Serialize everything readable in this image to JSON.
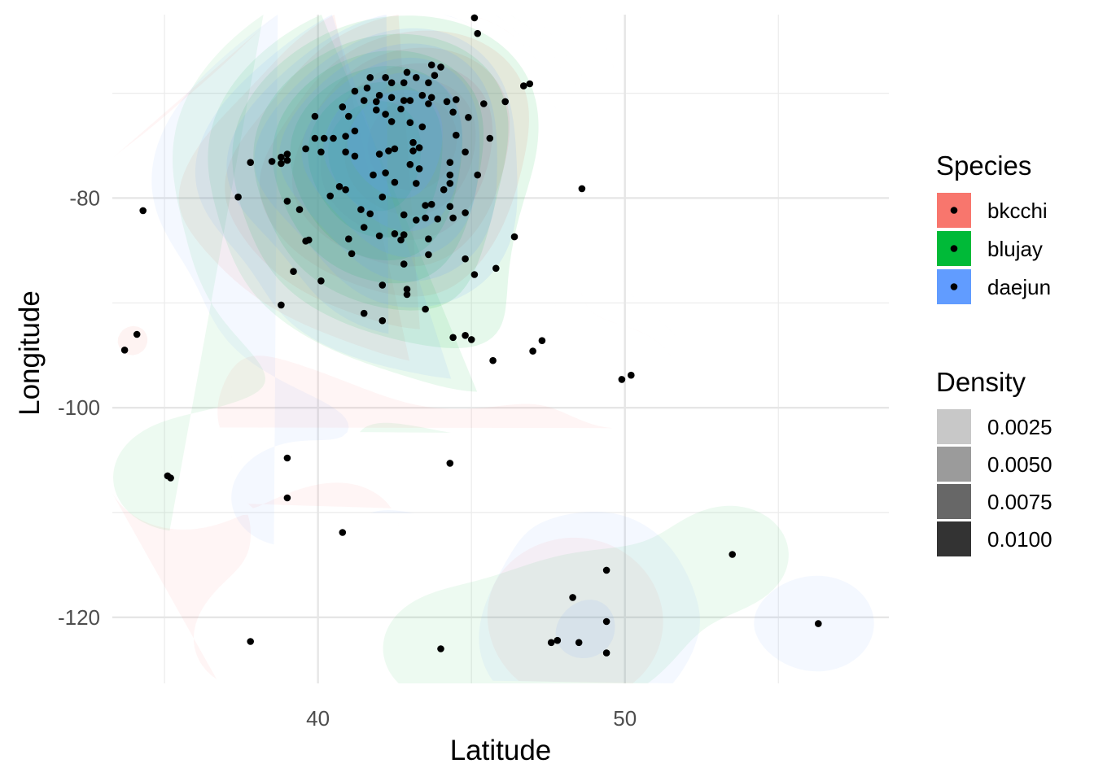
{
  "chart_data": {
    "type": "scatter",
    "xlabel": "Latitude",
    "ylabel": "Longitude",
    "xlim": [
      33.3,
      58.6
    ],
    "ylim": [
      -126.3,
      -62.5
    ],
    "x_ticks": [
      40,
      50
    ],
    "x_tick_labels": [
      "40",
      "50"
    ],
    "y_ticks": [
      -120,
      -100,
      -80
    ],
    "y_tick_labels": [
      "-120",
      "-100",
      "-80"
    ],
    "grid": true,
    "legend_position": "right",
    "legends": {
      "species": {
        "title": "Species",
        "entries": [
          {
            "label": "bkcchi",
            "color": "#F8766D"
          },
          {
            "label": "blujay",
            "color": "#00BA38"
          },
          {
            "label": "daejun",
            "color": "#619CFF"
          }
        ]
      },
      "density": {
        "title": "Density",
        "entries": [
          {
            "label": "0.0025",
            "alpha": 0.25
          },
          {
            "label": "0.0050",
            "alpha": 0.5
          },
          {
            "label": "0.0075",
            "alpha": 0.75
          },
          {
            "label": "0.0100",
            "alpha": 1.0
          }
        ]
      }
    },
    "points": [
      [
        45.1,
        -62.8
      ],
      [
        45.2,
        -64.3
      ],
      [
        43.7,
        -67.3
      ],
      [
        44.0,
        -67.5
      ],
      [
        42.9,
        -68.0
      ],
      [
        43.2,
        -68.5
      ],
      [
        41.7,
        -68.5
      ],
      [
        42.8,
        -69.0
      ],
      [
        43.8,
        -68.3
      ],
      [
        42.2,
        -68.5
      ],
      [
        42.4,
        -69.0
      ],
      [
        43.6,
        -69.0
      ],
      [
        46.7,
        -69.3
      ],
      [
        46.9,
        -69.1
      ],
      [
        41.6,
        -69.5
      ],
      [
        41.2,
        -69.8
      ],
      [
        42.0,
        -70.2
      ],
      [
        43.4,
        -70.2
      ],
      [
        43.7,
        -70.4
      ],
      [
        42.4,
        -70.4
      ],
      [
        42.8,
        -70.7
      ],
      [
        41.9,
        -70.8
      ],
      [
        41.5,
        -70.7
      ],
      [
        43.0,
        -70.7
      ],
      [
        44.5,
        -70.6
      ],
      [
        44.2,
        -70.8
      ],
      [
        45.4,
        -71.0
      ],
      [
        46.1,
        -70.8
      ],
      [
        40.8,
        -71.3
      ],
      [
        42.7,
        -71.5
      ],
      [
        43.6,
        -71.0
      ],
      [
        41.9,
        -71.6
      ],
      [
        42.2,
        -72.0
      ],
      [
        44.4,
        -71.8
      ],
      [
        44.9,
        -72.3
      ],
      [
        42.4,
        -72.7
      ],
      [
        43.0,
        -72.8
      ],
      [
        39.9,
        -72.2
      ],
      [
        41.0,
        -72.2
      ],
      [
        43.4,
        -73.2
      ],
      [
        41.2,
        -73.6
      ],
      [
        39.9,
        -74.3
      ],
      [
        40.2,
        -74.3
      ],
      [
        40.5,
        -74.3
      ],
      [
        40.9,
        -74.1
      ],
      [
        43.1,
        -74.7
      ],
      [
        45.6,
        -74.3
      ],
      [
        44.5,
        -74.0
      ],
      [
        43.3,
        -75.2
      ],
      [
        39.6,
        -75.3
      ],
      [
        40.1,
        -75.6
      ],
      [
        42.3,
        -75.5
      ],
      [
        42.5,
        -75.3
      ],
      [
        43.1,
        -75.5
      ],
      [
        44.8,
        -75.6
      ],
      [
        39.0,
        -75.8
      ],
      [
        40.9,
        -75.6
      ],
      [
        42.0,
        -75.8
      ],
      [
        41.2,
        -76.0
      ],
      [
        38.8,
        -76.1
      ],
      [
        38.8,
        -76.7
      ],
      [
        39.0,
        -76.4
      ],
      [
        38.5,
        -76.5
      ],
      [
        37.8,
        -76.6
      ],
      [
        43.0,
        -76.8
      ],
      [
        44.3,
        -76.6
      ],
      [
        43.3,
        -77.2
      ],
      [
        44.3,
        -77.8
      ],
      [
        45.2,
        -77.8
      ],
      [
        42.2,
        -77.6
      ],
      [
        41.8,
        -77.8
      ],
      [
        40.7,
        -78.9
      ],
      [
        40.9,
        -79.2
      ],
      [
        42.5,
        -78.5
      ],
      [
        43.2,
        -78.6
      ],
      [
        44.3,
        -78.6
      ],
      [
        40.4,
        -79.8
      ],
      [
        42.1,
        -79.9
      ],
      [
        44.1,
        -79.2
      ],
      [
        48.6,
        -79.1
      ],
      [
        37.4,
        -79.9
      ],
      [
        39.0,
        -80.3
      ],
      [
        43.5,
        -80.7
      ],
      [
        43.7,
        -80.6
      ],
      [
        44.3,
        -80.8
      ],
      [
        41.4,
        -81.1
      ],
      [
        41.7,
        -81.5
      ],
      [
        39.4,
        -81.1
      ],
      [
        42.8,
        -81.6
      ],
      [
        44.8,
        -81.4
      ],
      [
        34.3,
        -81.2
      ],
      [
        43.2,
        -82.1
      ],
      [
        43.5,
        -81.9
      ],
      [
        44.4,
        -81.9
      ],
      [
        41.5,
        -82.8
      ],
      [
        42.5,
        -83.4
      ],
      [
        43.9,
        -82.0
      ],
      [
        41.0,
        -83.9
      ],
      [
        42.0,
        -83.6
      ],
      [
        42.7,
        -84.0
      ],
      [
        42.8,
        -83.5
      ],
      [
        43.6,
        -83.9
      ],
      [
        39.6,
        -84.1
      ],
      [
        39.7,
        -84.0
      ],
      [
        46.4,
        -83.7
      ],
      [
        41.1,
        -85.3
      ],
      [
        43.6,
        -85.4
      ],
      [
        42.8,
        -86.3
      ],
      [
        44.8,
        -85.8
      ],
      [
        39.2,
        -87.0
      ],
      [
        45.8,
        -86.7
      ],
      [
        40.1,
        -87.9
      ],
      [
        45.1,
        -87.3
      ],
      [
        42.1,
        -88.3
      ],
      [
        42.9,
        -88.7
      ],
      [
        42.9,
        -89.2
      ],
      [
        38.8,
        -90.2
      ],
      [
        43.5,
        -90.6
      ],
      [
        41.5,
        -91.0
      ],
      [
        42.1,
        -91.7
      ],
      [
        34.1,
        -93.0
      ],
      [
        44.4,
        -93.3
      ],
      [
        44.8,
        -93.1
      ],
      [
        45.0,
        -93.5
      ],
      [
        47.3,
        -93.6
      ],
      [
        47.0,
        -94.6
      ],
      [
        33.7,
        -94.5
      ],
      [
        45.7,
        -95.5
      ],
      [
        50.2,
        -96.9
      ],
      [
        49.9,
        -97.3
      ],
      [
        39.0,
        -104.8
      ],
      [
        44.3,
        -105.3
      ],
      [
        35.1,
        -106.5
      ],
      [
        35.2,
        -106.7
      ],
      [
        39.0,
        -108.6
      ],
      [
        40.8,
        -111.9
      ],
      [
        53.5,
        -114.0
      ],
      [
        49.4,
        -115.5
      ],
      [
        48.3,
        -118.1
      ],
      [
        49.4,
        -120.4
      ],
      [
        56.3,
        -120.6
      ],
      [
        37.8,
        -122.3
      ],
      [
        47.8,
        -122.2
      ],
      [
        47.6,
        -122.4
      ],
      [
        48.5,
        -122.4
      ],
      [
        44.0,
        -123.0
      ],
      [
        49.4,
        -123.4
      ]
    ]
  }
}
